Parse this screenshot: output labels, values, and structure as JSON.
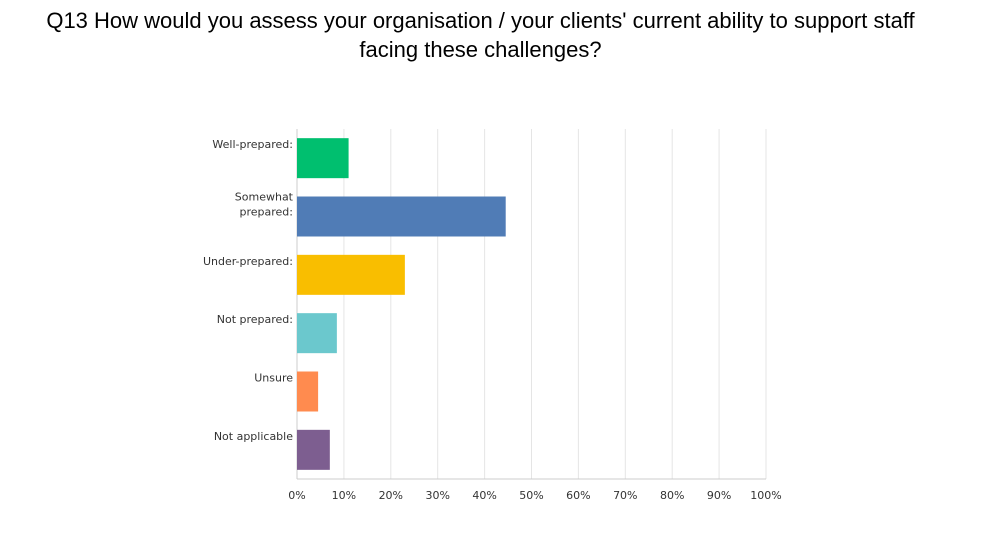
{
  "title": {
    "line1": "Q13 How would you assess your organisation / your clients' current ability to support staff",
    "line2": "facing these challenges?"
  },
  "chart_data": {
    "type": "bar",
    "orientation": "horizontal",
    "categories": [
      [
        "Well-prepared:"
      ],
      [
        "Somewhat",
        "prepared:"
      ],
      [
        "Under-prepared:"
      ],
      [
        "Not prepared:"
      ],
      [
        "Unsure"
      ],
      [
        "Not applicable"
      ]
    ],
    "values": [
      11,
      44.5,
      23,
      8.5,
      4.5,
      7
    ],
    "colors": [
      "#00bf6f",
      "#507cb6",
      "#f9be00",
      "#6bc8cd",
      "#ff8b4f",
      "#7d5e90"
    ],
    "xlim": [
      0,
      100
    ],
    "xticks": [
      "0%",
      "10%",
      "20%",
      "30%",
      "40%",
      "50%",
      "60%",
      "70%",
      "80%",
      "90%",
      "100%"
    ],
    "grid": true,
    "xlabel": "",
    "ylabel": ""
  }
}
